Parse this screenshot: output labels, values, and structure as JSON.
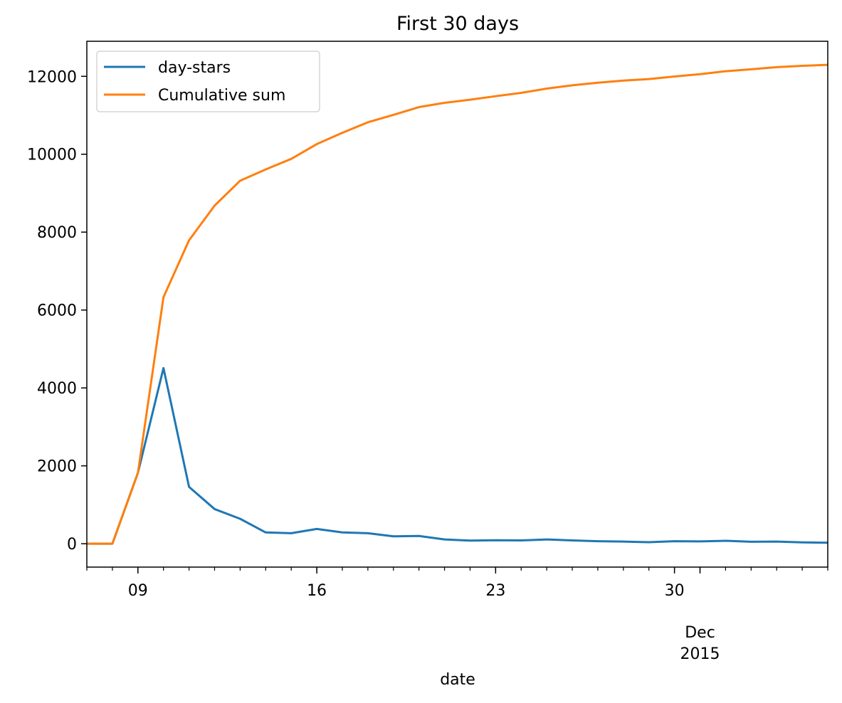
{
  "chart_data": {
    "type": "line",
    "title": "First 30 days",
    "xlabel": "date",
    "ylabel": "",
    "x_type": "date",
    "x": [
      "2015-11-07",
      "2015-11-08",
      "2015-11-09",
      "2015-11-10",
      "2015-11-11",
      "2015-11-12",
      "2015-11-13",
      "2015-11-14",
      "2015-11-15",
      "2015-11-16",
      "2015-11-17",
      "2015-11-18",
      "2015-11-19",
      "2015-11-20",
      "2015-11-21",
      "2015-11-22",
      "2015-11-23",
      "2015-11-24",
      "2015-11-25",
      "2015-11-26",
      "2015-11-27",
      "2015-11-28",
      "2015-11-29",
      "2015-11-30",
      "2015-12-01",
      "2015-12-02",
      "2015-12-03",
      "2015-12-04",
      "2015-12-05",
      "2015-12-06"
    ],
    "xlim": [
      "2015-11-07",
      "2015-12-06"
    ],
    "x_tick_labels": [
      {
        "date": "2015-11-09",
        "label": "09"
      },
      {
        "date": "2015-11-16",
        "label": "16"
      },
      {
        "date": "2015-11-23",
        "label": "23"
      },
      {
        "date": "2015-11-30",
        "label": "30"
      }
    ],
    "x_major_ticks": [
      "2015-11-09",
      "2015-11-16",
      "2015-11-23",
      "2015-11-30",
      "2015-12-01"
    ],
    "x_month_label": {
      "date": "2015-12-01",
      "line1": "Dec",
      "line2": "2015"
    },
    "ylim": [
      -600,
      12900
    ],
    "y_ticks": [
      0,
      2000,
      4000,
      6000,
      8000,
      10000,
      12000
    ],
    "y_tick_labels": [
      "0",
      "2000",
      "4000",
      "6000",
      "8000",
      "10000",
      "12000"
    ],
    "grid": false,
    "legend": "top-left",
    "series": [
      {
        "name": "day-stars",
        "color": "#1f77b4",
        "values": [
          0,
          0,
          1820,
          4510,
          1460,
          890,
          640,
          290,
          270,
          380,
          290,
          270,
          190,
          200,
          110,
          80,
          90,
          85,
          110,
          85,
          65,
          55,
          40,
          65,
          60,
          75,
          50,
          55,
          35,
          25
        ]
      },
      {
        "name": "Cumulative sum",
        "color": "#ff7f0e",
        "values": [
          0,
          0,
          1820,
          6330,
          7790,
          8680,
          9320,
          9610,
          9880,
          10260,
          10550,
          10820,
          11010,
          11210,
          11320,
          11400,
          11490,
          11575,
          11685,
          11770,
          11835,
          11890,
          11930,
          11995,
          12055,
          12130,
          12180,
          12235,
          12270,
          12295
        ]
      }
    ]
  }
}
